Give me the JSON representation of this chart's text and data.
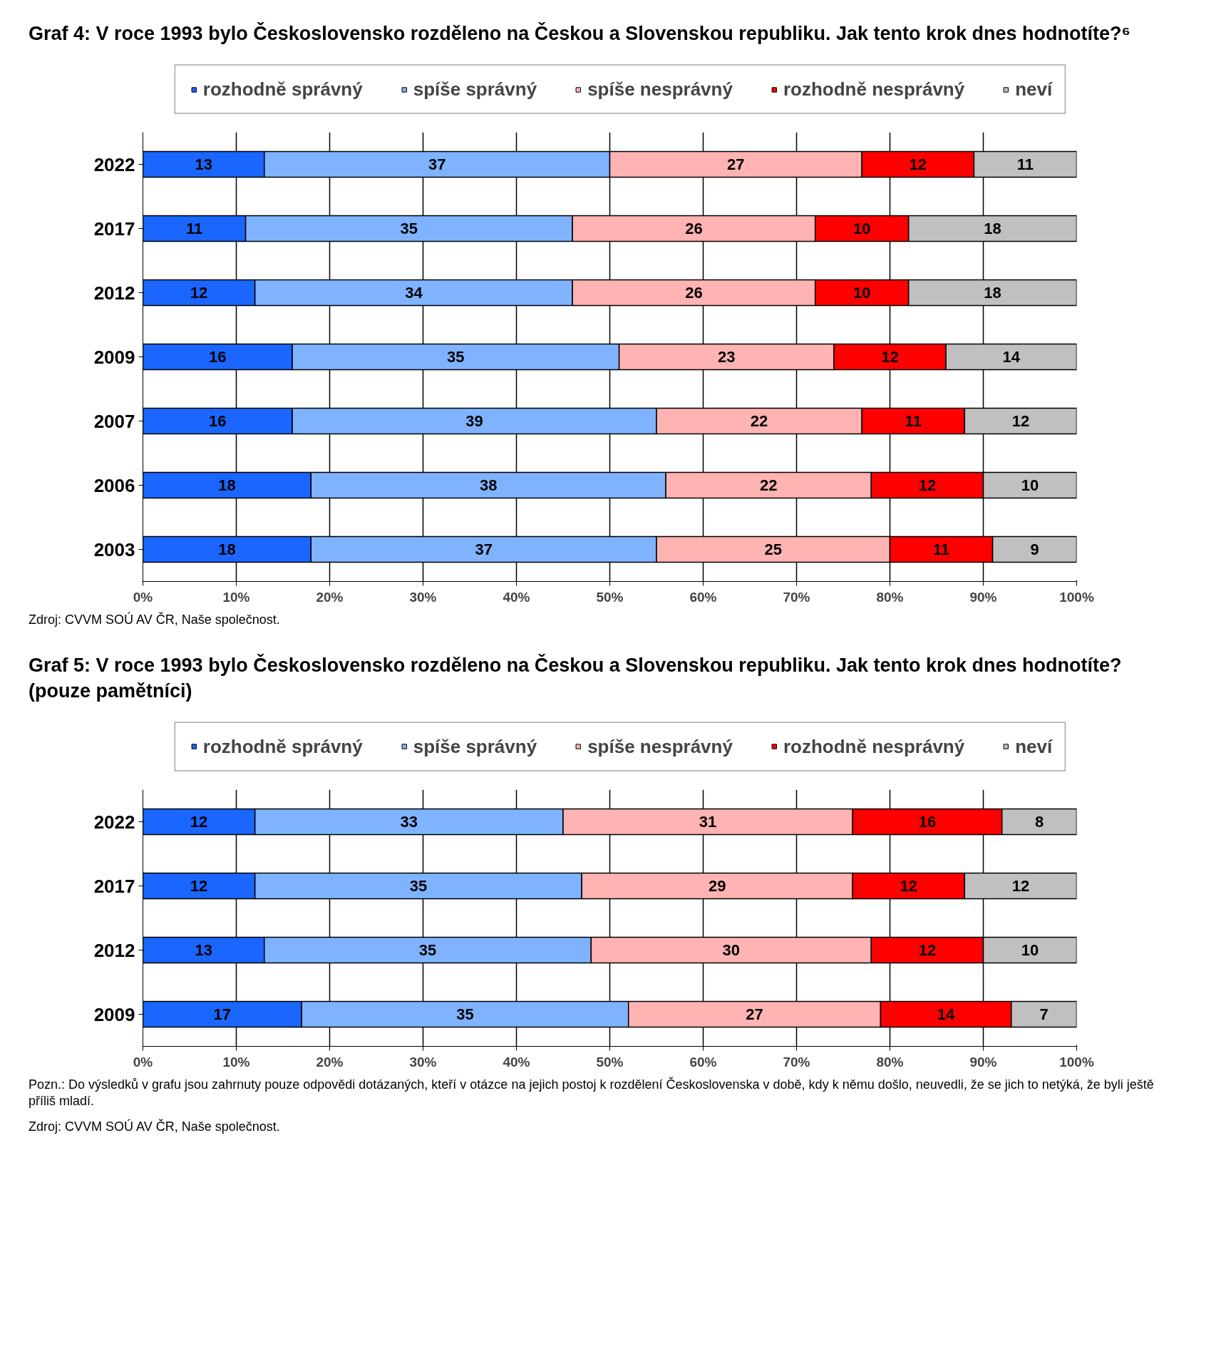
{
  "chart_data": [
    {
      "type": "bar",
      "orientation": "horizontal",
      "stacked": true,
      "data_labels": true,
      "grid": "x",
      "legend": "top",
      "title": "Graf 4: V roce 1993 bylo Československo rozděleno na Českou a Slovenskou republiku. Jak tento krok dnes hodnotíte?⁶",
      "categories": [
        "2022",
        "2017",
        "2012",
        "2009",
        "2007",
        "2006",
        "2003"
      ],
      "xlim": [
        0,
        100
      ],
      "xticks": [
        {
          "value": 0,
          "label": "0%"
        },
        {
          "value": 10,
          "label": "10%"
        },
        {
          "value": 20,
          "label": "20%"
        },
        {
          "value": 30,
          "label": "30%"
        },
        {
          "value": 40,
          "label": "40%"
        },
        {
          "value": 50,
          "label": "50%"
        },
        {
          "value": 60,
          "label": "60%"
        },
        {
          "value": 70,
          "label": "70%"
        },
        {
          "value": 80,
          "label": "80%"
        },
        {
          "value": 90,
          "label": "90%"
        },
        {
          "value": 100,
          "label": "100%"
        }
      ],
      "series": [
        {
          "name": "rozhodně správný",
          "color": "#1a66ff",
          "values": [
            13,
            11,
            12,
            16,
            16,
            18,
            18
          ]
        },
        {
          "name": "spíše správný",
          "color": "#80b3ff",
          "values": [
            37,
            35,
            34,
            35,
            39,
            38,
            37
          ]
        },
        {
          "name": "spíše nesprávný",
          "color": "#ffb3b3",
          "values": [
            27,
            26,
            26,
            23,
            22,
            22,
            25
          ]
        },
        {
          "name": "rozhodně nesprávný",
          "color": "#ff0000",
          "values": [
            12,
            10,
            10,
            12,
            11,
            12,
            11
          ]
        },
        {
          "name": "neví",
          "color": "#c0c0c0",
          "values": [
            11,
            18,
            18,
            14,
            12,
            10,
            9
          ]
        }
      ],
      "annotations": [
        "Zdroj: CVVM SOÚ AV ČR, Naše společnost."
      ]
    },
    {
      "type": "bar",
      "orientation": "horizontal",
      "stacked": true,
      "data_labels": true,
      "grid": "x",
      "legend": "top",
      "title": "Graf 5: V roce 1993 bylo Československo rozděleno na Českou a Slovenskou republiku. Jak tento krok dnes hodnotíte? (pouze pamětníci)",
      "categories": [
        "2022",
        "2017",
        "2012",
        "2009"
      ],
      "xlim": [
        0,
        100
      ],
      "xticks": [
        {
          "value": 0,
          "label": "0%"
        },
        {
          "value": 10,
          "label": "10%"
        },
        {
          "value": 20,
          "label": "20%"
        },
        {
          "value": 30,
          "label": "30%"
        },
        {
          "value": 40,
          "label": "40%"
        },
        {
          "value": 50,
          "label": "50%"
        },
        {
          "value": 60,
          "label": "60%"
        },
        {
          "value": 70,
          "label": "70%"
        },
        {
          "value": 80,
          "label": "80%"
        },
        {
          "value": 90,
          "label": "90%"
        },
        {
          "value": 100,
          "label": "100%"
        }
      ],
      "series": [
        {
          "name": "rozhodně správný",
          "color": "#1a66ff",
          "values": [
            12,
            12,
            13,
            17
          ]
        },
        {
          "name": "spíše správný",
          "color": "#80b3ff",
          "values": [
            33,
            35,
            35,
            35
          ]
        },
        {
          "name": "spíše nesprávný",
          "color": "#ffb3b3",
          "values": [
            31,
            29,
            30,
            27
          ]
        },
        {
          "name": "rozhodně nesprávný",
          "color": "#ff0000",
          "values": [
            16,
            12,
            12,
            14
          ]
        },
        {
          "name": "neví",
          "color": "#c0c0c0",
          "values": [
            8,
            12,
            10,
            7
          ]
        }
      ],
      "annotations": [
        "Pozn.: Do výsledků v grafu jsou zahrnuty pouze odpovědi dotázaných, kteří v otázce na jejich postoj k rozdělení Československa v době, kdy k němu došlo, neuvedli, že se jich to netýká, že byli ještě příliš mladí.",
        "Zdroj: CVVM SOÚ AV ČR, Naše společnost."
      ]
    }
  ]
}
